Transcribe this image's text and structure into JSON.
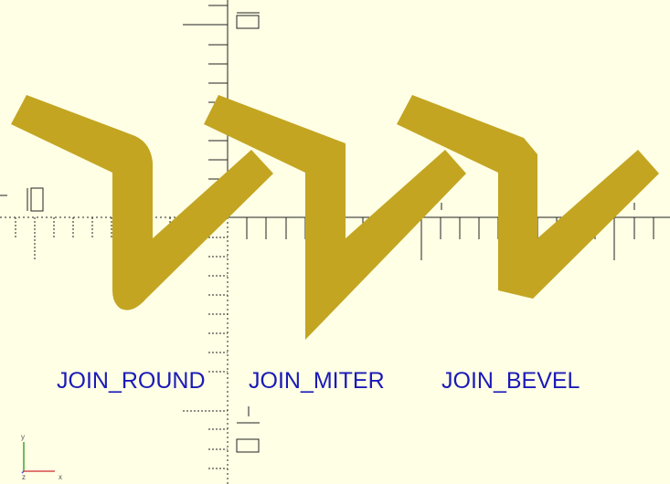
{
  "colors": {
    "background": "#ffffe5",
    "shape_fill": "#c3a522",
    "axis_lines": "#222222",
    "label_text": "#1a1ab8",
    "gizmo_x": "#d94a4a",
    "gizmo_y": "#3aa63a",
    "gizmo_z": "#4a4ad9"
  },
  "labels": {
    "join_round": "JOIN_ROUND",
    "join_miter": "JOIN_MITER",
    "join_bevel": "JOIN_BEVEL"
  },
  "axes_gizmo": {
    "x_label": "x",
    "y_label": "y",
    "z_label": "z"
  },
  "shapes": [
    {
      "name": "zigzag-round-join",
      "join": "round"
    },
    {
      "name": "zigzag-miter-join",
      "join": "miter"
    },
    {
      "name": "zigzag-bevel-join",
      "join": "bevel"
    }
  ]
}
